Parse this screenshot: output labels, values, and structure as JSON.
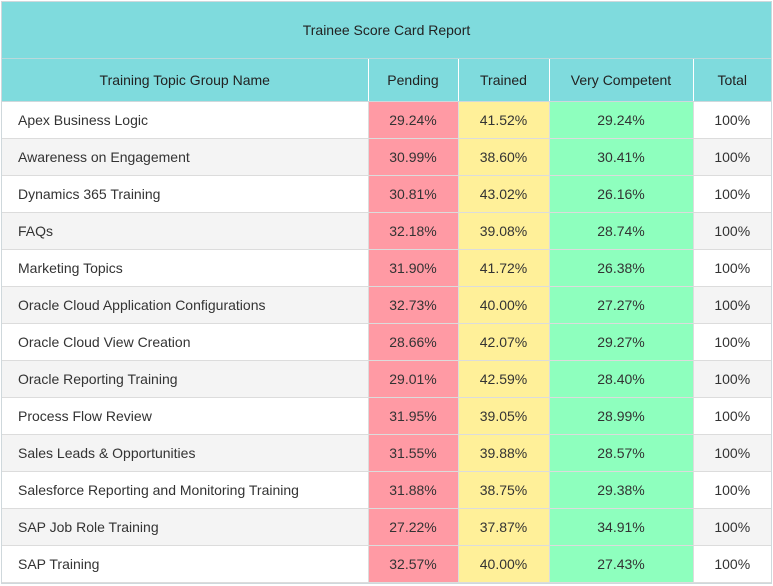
{
  "report": {
    "title": "Trainee Score Card Report",
    "columns": [
      "Training Topic Group Name",
      "Pending",
      "Trained",
      "Very Competent",
      "Total"
    ],
    "colors": {
      "header": "#7fdbdd",
      "pending": "#ff9aa4",
      "trained": "#fff099",
      "very_competent": "#8effbe"
    },
    "rows": [
      {
        "name": "Apex Business Logic",
        "pending": "29.24%",
        "trained": "41.52%",
        "competent": "29.24%",
        "total": "100%"
      },
      {
        "name": "Awareness on Engagement",
        "pending": "30.99%",
        "trained": "38.60%",
        "competent": "30.41%",
        "total": "100%"
      },
      {
        "name": "Dynamics 365 Training",
        "pending": "30.81%",
        "trained": "43.02%",
        "competent": "26.16%",
        "total": "100%"
      },
      {
        "name": "FAQs",
        "pending": "32.18%",
        "trained": "39.08%",
        "competent": "28.74%",
        "total": "100%"
      },
      {
        "name": "Marketing Topics",
        "pending": "31.90%",
        "trained": "41.72%",
        "competent": "26.38%",
        "total": "100%"
      },
      {
        "name": "Oracle Cloud Application Configurations",
        "pending": "32.73%",
        "trained": "40.00%",
        "competent": "27.27%",
        "total": "100%"
      },
      {
        "name": "Oracle Cloud View Creation",
        "pending": "28.66%",
        "trained": "42.07%",
        "competent": "29.27%",
        "total": "100%"
      },
      {
        "name": "Oracle Reporting Training",
        "pending": "29.01%",
        "trained": "42.59%",
        "competent": "28.40%",
        "total": "100%"
      },
      {
        "name": "Process Flow Review",
        "pending": "31.95%",
        "trained": "39.05%",
        "competent": "28.99%",
        "total": "100%"
      },
      {
        "name": "Sales Leads & Opportunities",
        "pending": "31.55%",
        "trained": "39.88%",
        "competent": "28.57%",
        "total": "100%"
      },
      {
        "name": "Salesforce Reporting and Monitoring Training",
        "pending": "31.88%",
        "trained": "38.75%",
        "competent": "29.38%",
        "total": "100%"
      },
      {
        "name": "SAP Job Role Training",
        "pending": "27.22%",
        "trained": "37.87%",
        "competent": "34.91%",
        "total": "100%"
      },
      {
        "name": "SAP Training",
        "pending": "32.57%",
        "trained": "40.00%",
        "competent": "27.43%",
        "total": "100%"
      }
    ]
  }
}
